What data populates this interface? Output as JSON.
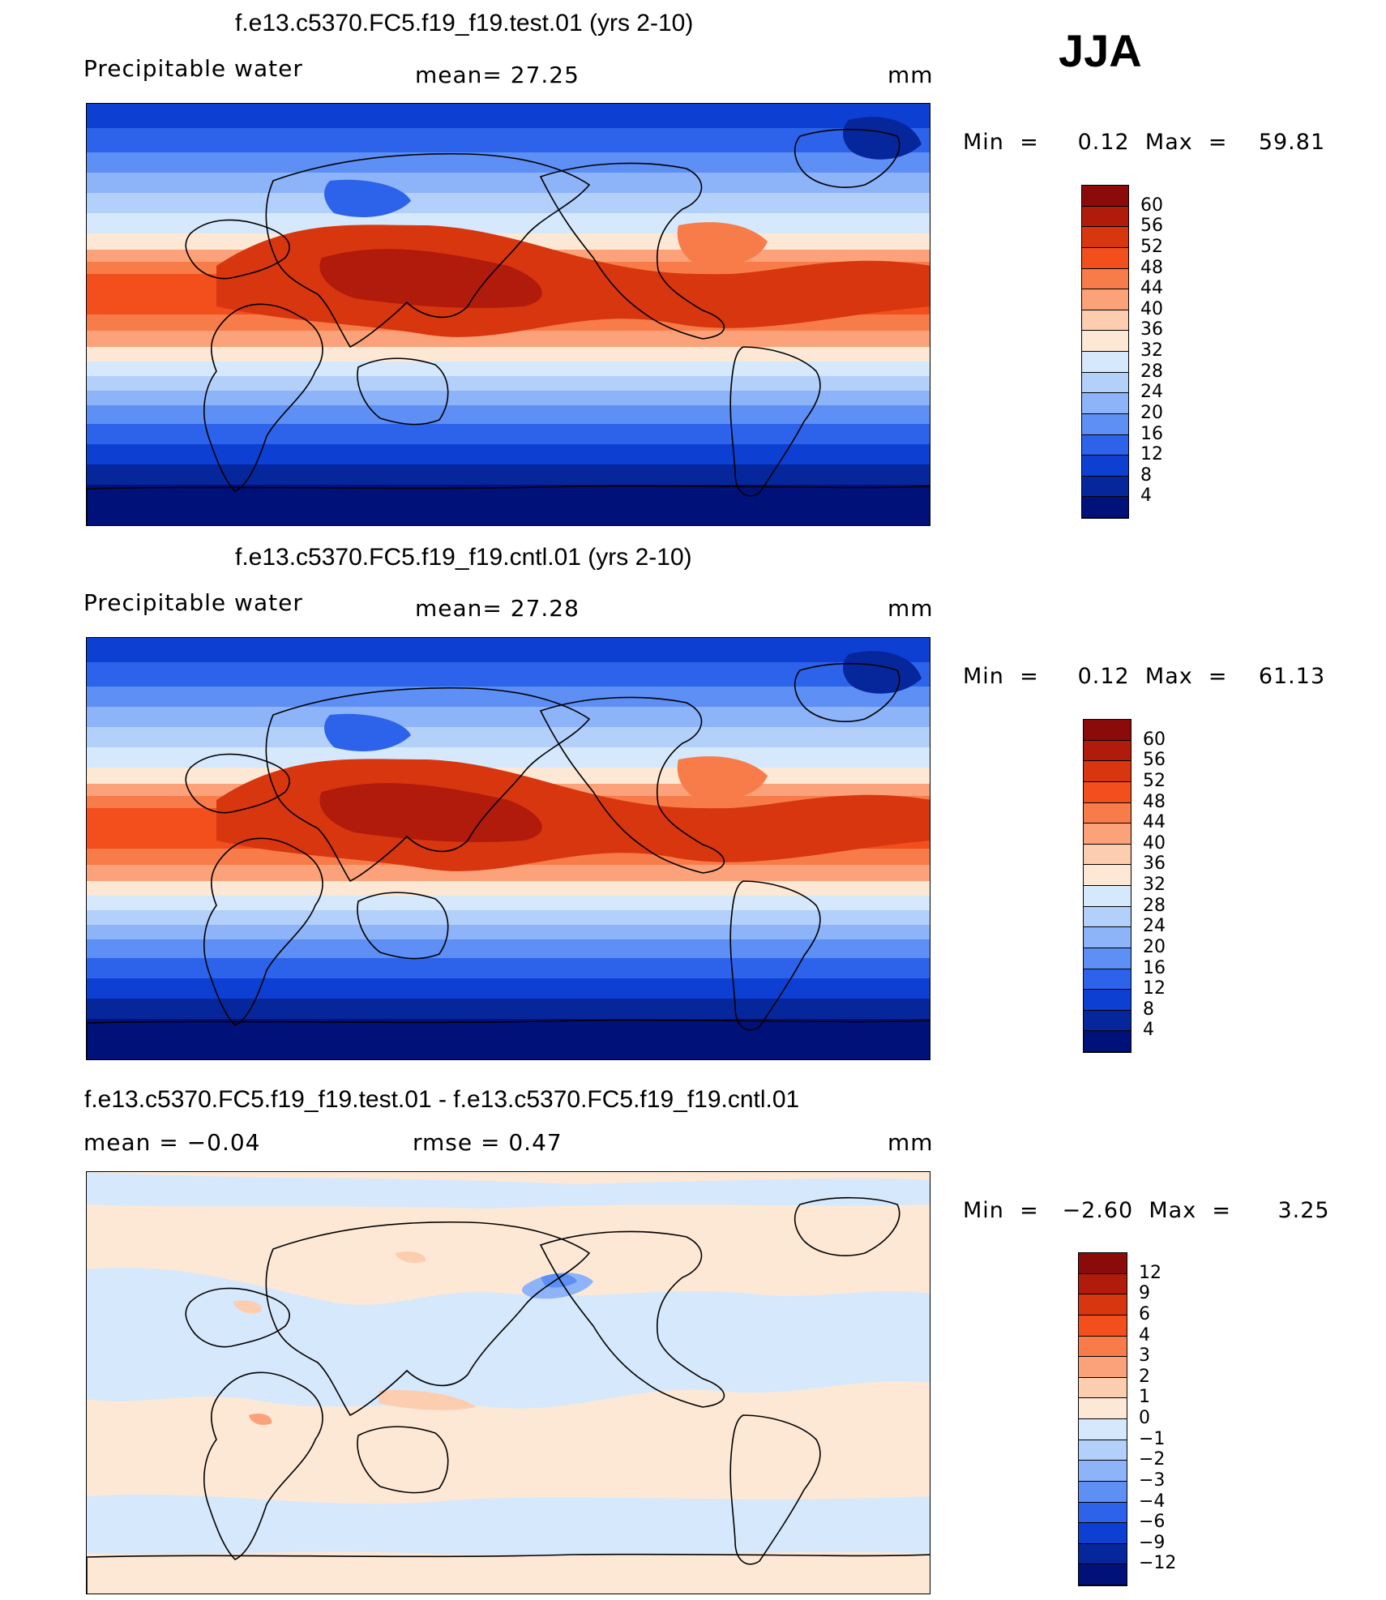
{
  "season": "JJA",
  "panels": [
    {
      "title": "f.e13.c5370.FC5.f19_f19.test.01 (yrs 2-10)",
      "left_label": "Precipitable  water",
      "center_label": "mean=   27.25",
      "units": "mm",
      "minmax": "Min  =     0.12  Max  =    59.81",
      "colorbar": {
        "levels": [
          "60",
          "56",
          "52",
          "48",
          "44",
          "40",
          "36",
          "32",
          "28",
          "24",
          "20",
          "16",
          "12",
          "8",
          "4"
        ],
        "colors": [
          "#8b0a0a",
          "#b11b0c",
          "#d8360f",
          "#f24f1c",
          "#f87c4a",
          "#fba27a",
          "#fdcdb0",
          "#fde8d6",
          "#d6e8fb",
          "#b3d0fb",
          "#8db3f9",
          "#5e8ff4",
          "#2d63ea",
          "#0d3fd3",
          "#06269c",
          "#00117a"
        ]
      },
      "kind": "abs"
    },
    {
      "title": "f.e13.c5370.FC5.f19_f19.cntl.01 (yrs 2-10)",
      "left_label": "Precipitable  water",
      "center_label": "mean=   27.28",
      "units": "mm",
      "minmax": "Min  =     0.12  Max  =    61.13",
      "colorbar": {
        "levels": [
          "60",
          "56",
          "52",
          "48",
          "44",
          "40",
          "36",
          "32",
          "28",
          "24",
          "20",
          "16",
          "12",
          "8",
          "4"
        ],
        "colors": [
          "#8b0a0a",
          "#b11b0c",
          "#d8360f",
          "#f24f1c",
          "#f87c4a",
          "#fba27a",
          "#fdcdb0",
          "#fde8d6",
          "#d6e8fb",
          "#b3d0fb",
          "#8db3f9",
          "#5e8ff4",
          "#2d63ea",
          "#0d3fd3",
          "#06269c",
          "#00117a"
        ]
      },
      "kind": "abs"
    },
    {
      "title": "f.e13.c5370.FC5.f19_f19.test.01 - f.e13.c5370.FC5.f19_f19.cntl.01",
      "left_label": "mean  =    −0.04",
      "center_label": "rmse  =     0.47",
      "units": "mm",
      "minmax": "Min  =   −2.60  Max  =      3.25",
      "colorbar": {
        "levels": [
          "12",
          "9",
          "6",
          "4",
          "3",
          "2",
          "1",
          "0",
          "−1",
          "−2",
          "−3",
          "−4",
          "−6",
          "−9",
          "−12"
        ],
        "colors": [
          "#8b0a0a",
          "#b11b0c",
          "#d8360f",
          "#f24f1c",
          "#f87c4a",
          "#fba27a",
          "#fdcdb0",
          "#fde8d6",
          "#d6e8fb",
          "#b3d0fb",
          "#8db3f9",
          "#5e8ff4",
          "#2d63ea",
          "#0d3fd3",
          "#06269c",
          "#00117a"
        ]
      },
      "kind": "diff"
    }
  ]
}
